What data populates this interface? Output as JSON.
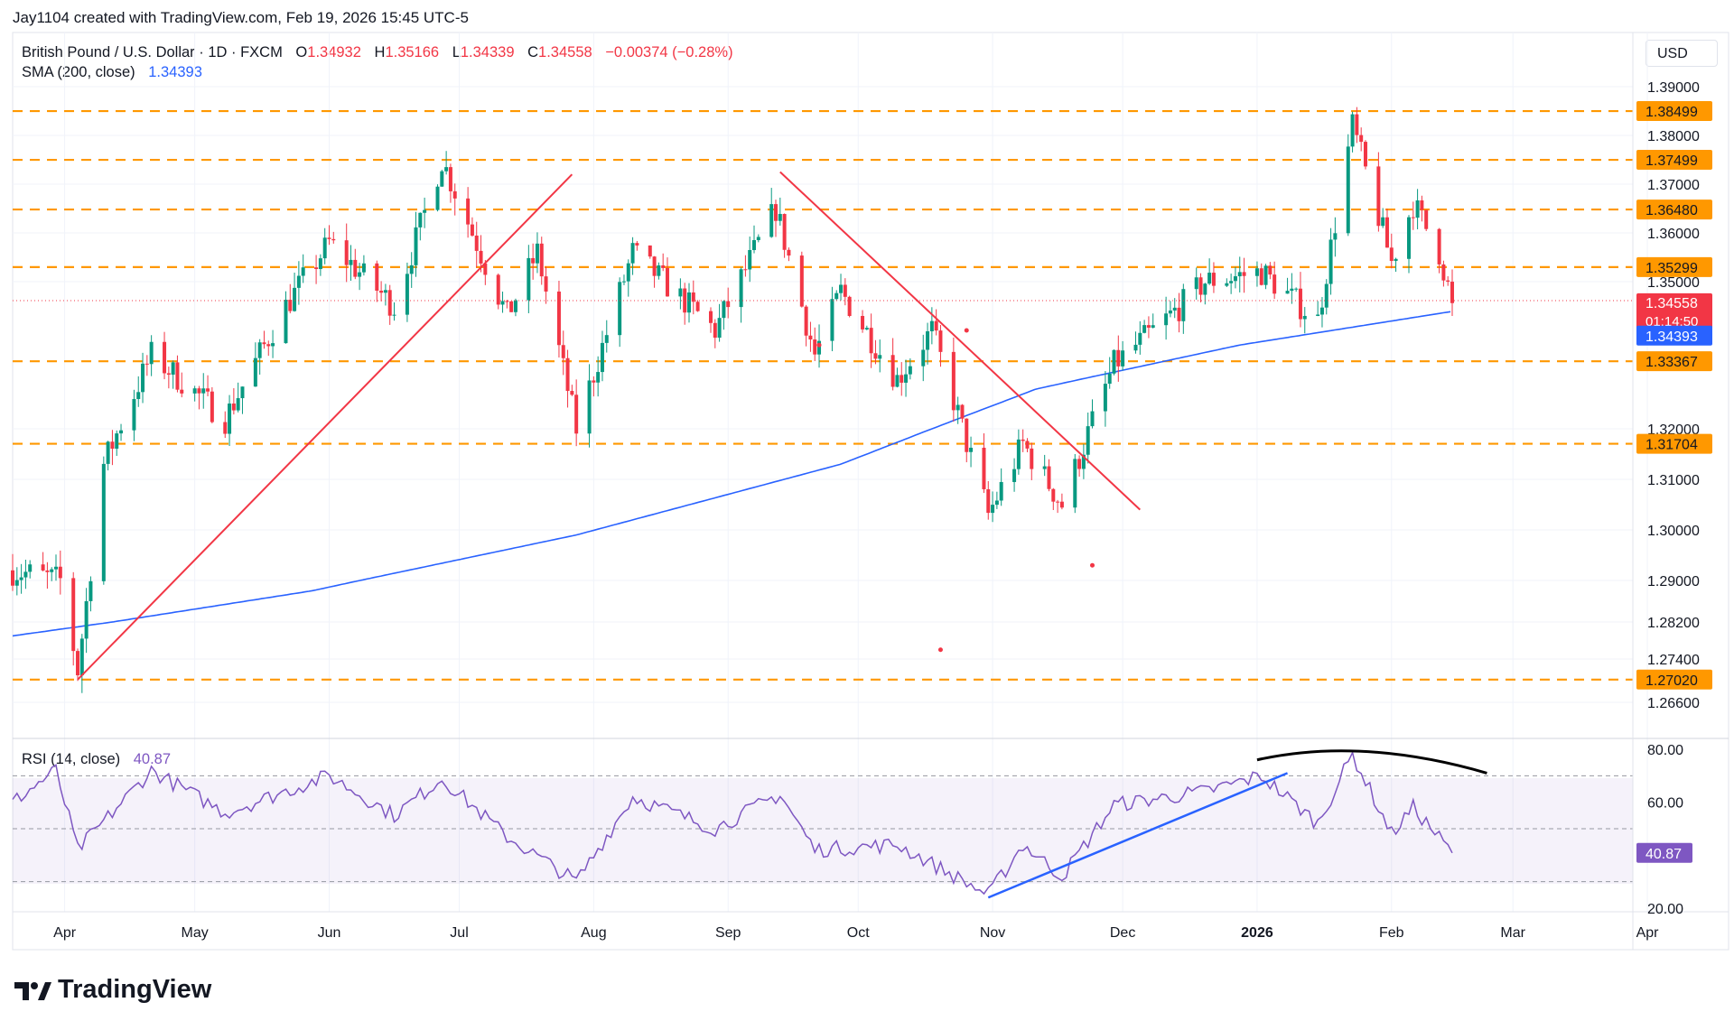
{
  "header": {
    "attribution": "Jay1104 created with TradingView.com, Feb 19, 2026 15:45 UTC-5"
  },
  "symbol": {
    "name": "British Pound / U.S. Dollar · 1D · FXCM",
    "open_label": "O",
    "open": "1.34932",
    "high_label": "H",
    "high": "1.35166",
    "low_label": "L",
    "low": "1.34339",
    "close_label": "C",
    "close": "1.34558",
    "change": "−0.00374 (−0.28%)"
  },
  "sma": {
    "label": "SMA (200, close)",
    "value": "1.34393"
  },
  "rsi": {
    "label": "RSI (14, close)",
    "value": "40.87"
  },
  "currency_button": "USD",
  "brand": "TradingView",
  "countdown": "01:14:50",
  "colors": {
    "up": "#089981",
    "down": "#f23645",
    "sma": "#2962ff",
    "rsi": "#7e57c2",
    "level": "#ff9800",
    "trend": "#f23645"
  },
  "chart_data": [
    {
      "type": "candlestick",
      "title": "British Pound / U.S. Dollar · 1D · FXCM",
      "x_axis_labels": [
        "Apr",
        "May",
        "Jun",
        "Jul",
        "Aug",
        "Sep",
        "Oct",
        "Nov",
        "Dec",
        "2026",
        "Feb",
        "Mar",
        "Apr"
      ],
      "price_axis_labels": [
        "1.39000",
        "1.38000",
        "1.37000",
        "1.36000",
        "1.35000",
        "1.32000",
        "1.31000",
        "1.30000",
        "1.29000",
        "1.28200",
        "1.27400",
        "1.26600"
      ],
      "horizontal_levels": [
        "1.38499",
        "1.37499",
        "1.36480",
        "1.35299",
        "1.33367",
        "1.31704",
        "1.27020"
      ],
      "last_price": "1.34558",
      "sma_last": "1.34393",
      "anchors": [
        {
          "date": "2025-03-24",
          "price": 1.292
        },
        {
          "date": "2025-04-04",
          "price": 1.29
        },
        {
          "date": "2025-04-08",
          "price": 1.272
        },
        {
          "date": "2025-04-14",
          "price": 1.313
        },
        {
          "date": "2025-04-25",
          "price": 1.335
        },
        {
          "date": "2025-05-12",
          "price": 1.322
        },
        {
          "date": "2025-05-26",
          "price": 1.345
        },
        {
          "date": "2025-06-05",
          "price": 1.358
        },
        {
          "date": "2025-06-20",
          "price": 1.345
        },
        {
          "date": "2025-07-01",
          "price": 1.375
        },
        {
          "date": "2025-07-16",
          "price": 1.343
        },
        {
          "date": "2025-07-23",
          "price": 1.356
        },
        {
          "date": "2025-08-01",
          "price": 1.32
        },
        {
          "date": "2025-08-14",
          "price": 1.356
        },
        {
          "date": "2025-09-02",
          "price": 1.34
        },
        {
          "date": "2025-09-16",
          "price": 1.365
        },
        {
          "date": "2025-09-25",
          "price": 1.335
        },
        {
          "date": "2025-10-01",
          "price": 1.348
        },
        {
          "date": "2025-10-14",
          "price": 1.33
        },
        {
          "date": "2025-10-22",
          "price": 1.34
        },
        {
          "date": "2025-11-04",
          "price": 1.303
        },
        {
          "date": "2025-11-12",
          "price": 1.317
        },
        {
          "date": "2025-11-21",
          "price": 1.305
        },
        {
          "date": "2025-12-03",
          "price": 1.333
        },
        {
          "date": "2025-12-16",
          "price": 1.343
        },
        {
          "date": "2025-12-24",
          "price": 1.35
        },
        {
          "date": "2026-01-06",
          "price": 1.352
        },
        {
          "date": "2026-01-19",
          "price": 1.342
        },
        {
          "date": "2026-01-27",
          "price": 1.382
        },
        {
          "date": "2026-02-05",
          "price": 1.354
        },
        {
          "date": "2026-02-10",
          "price": 1.366
        },
        {
          "date": "2026-02-16",
          "price": 1.356
        },
        {
          "date": "2026-02-19",
          "price": 1.3456
        }
      ],
      "sma_series": [
        {
          "date": "2025-03-24",
          "value": 1.279
        },
        {
          "date": "2025-06-01",
          "value": 1.288
        },
        {
          "date": "2025-08-01",
          "value": 1.299
        },
        {
          "date": "2025-10-01",
          "value": 1.313
        },
        {
          "date": "2025-11-15",
          "value": 1.328
        },
        {
          "date": "2026-01-01",
          "value": 1.337
        },
        {
          "date": "2026-02-19",
          "value": 1.3439
        }
      ],
      "trendlines": [
        {
          "from": {
            "date": "2025-04-08",
            "price": 1.2702
          },
          "to": {
            "date": "2025-07-31",
            "price": 1.372
          }
        },
        {
          "from": {
            "date": "2025-09-17",
            "price": 1.3725
          },
          "to": {
            "date": "2025-12-09",
            "price": 1.304
          }
        }
      ],
      "markers": [
        {
          "date": "2025-09-26",
          "price": 1.337
        },
        {
          "date": "2025-10-30",
          "price": 1.34
        },
        {
          "date": "2025-10-24",
          "price": 1.276
        },
        {
          "date": "2025-11-28",
          "price": 1.293
        }
      ]
    },
    {
      "type": "line",
      "title": "RSI (14, close)",
      "y_axis_labels": [
        "80.00",
        "60.00",
        "20.00"
      ],
      "bands": {
        "upper": 70,
        "middle": 50,
        "lower": 30
      },
      "last_value": "40.87",
      "points": [
        {
          "date": "2025-03-24",
          "value": 60
        },
        {
          "date": "2025-04-03",
          "value": 72
        },
        {
          "date": "2025-04-08",
          "value": 42
        },
        {
          "date": "2025-04-25",
          "value": 72
        },
        {
          "date": "2025-05-12",
          "value": 56
        },
        {
          "date": "2025-06-05",
          "value": 70
        },
        {
          "date": "2025-06-20",
          "value": 55
        },
        {
          "date": "2025-07-01",
          "value": 69
        },
        {
          "date": "2025-07-16",
          "value": 47
        },
        {
          "date": "2025-08-01",
          "value": 30
        },
        {
          "date": "2025-08-14",
          "value": 62
        },
        {
          "date": "2025-09-02",
          "value": 50
        },
        {
          "date": "2025-09-17",
          "value": 63
        },
        {
          "date": "2025-09-25",
          "value": 42
        },
        {
          "date": "2025-10-14",
          "value": 44
        },
        {
          "date": "2025-11-04",
          "value": 25
        },
        {
          "date": "2025-11-12",
          "value": 44
        },
        {
          "date": "2025-11-21",
          "value": 32
        },
        {
          "date": "2025-12-03",
          "value": 59
        },
        {
          "date": "2025-12-24",
          "value": 64
        },
        {
          "date": "2026-01-06",
          "value": 70
        },
        {
          "date": "2026-01-19",
          "value": 52
        },
        {
          "date": "2026-01-27",
          "value": 78
        },
        {
          "date": "2026-02-05",
          "value": 48
        },
        {
          "date": "2026-02-10",
          "value": 58
        },
        {
          "date": "2026-02-19",
          "value": 40.87
        }
      ],
      "trendline": {
        "from": {
          "date": "2025-11-04",
          "value": 24
        },
        "to": {
          "date": "2026-01-12",
          "value": 71
        }
      },
      "arc": [
        {
          "date": "2026-01-05",
          "value": 76
        },
        {
          "date": "2026-01-29",
          "value": 80
        },
        {
          "date": "2026-02-27",
          "value": 71
        }
      ]
    }
  ]
}
